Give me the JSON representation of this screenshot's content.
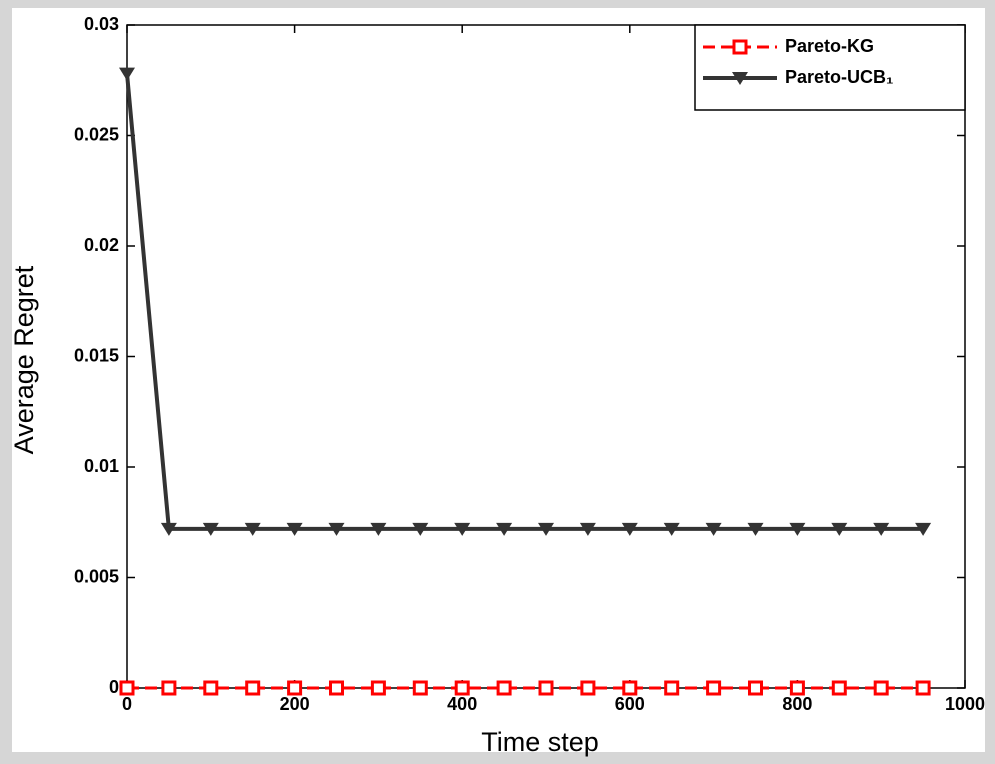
{
  "chart_data": {
    "type": "line",
    "x_label": "Time step",
    "y_label": "Average Regret",
    "x": [
      0,
      50,
      100,
      150,
      200,
      250,
      300,
      350,
      400,
      450,
      500,
      550,
      600,
      650,
      700,
      750,
      800,
      850,
      900,
      950
    ],
    "series": [
      {
        "name": "Pareto-KG",
        "color": "#ff0000",
        "marker": "square",
        "dashed": true,
        "values": [
          0,
          0,
          0,
          0,
          0,
          0,
          0,
          0,
          0,
          0,
          0,
          0,
          0,
          0,
          0,
          0,
          0,
          0,
          0,
          0
        ]
      },
      {
        "name": "Pareto-UCB₁",
        "color": "#333333",
        "marker": "triangle-down",
        "dashed": false,
        "values": [
          0.0278,
          0.0072,
          0.0072,
          0.0072,
          0.0072,
          0.0072,
          0.0072,
          0.0072,
          0.0072,
          0.0072,
          0.0072,
          0.0072,
          0.0072,
          0.0072,
          0.0072,
          0.0072,
          0.0072,
          0.0072,
          0.0072,
          0.0072
        ]
      }
    ],
    "xlim": [
      0,
      1000
    ],
    "xticks": [
      0,
      200,
      400,
      600,
      800,
      1000
    ],
    "ylim": [
      0,
      0.03
    ],
    "yticks": [
      0,
      0.005,
      0.01,
      0.015,
      0.02,
      0.025,
      0.03
    ],
    "legend": "upper right"
  }
}
